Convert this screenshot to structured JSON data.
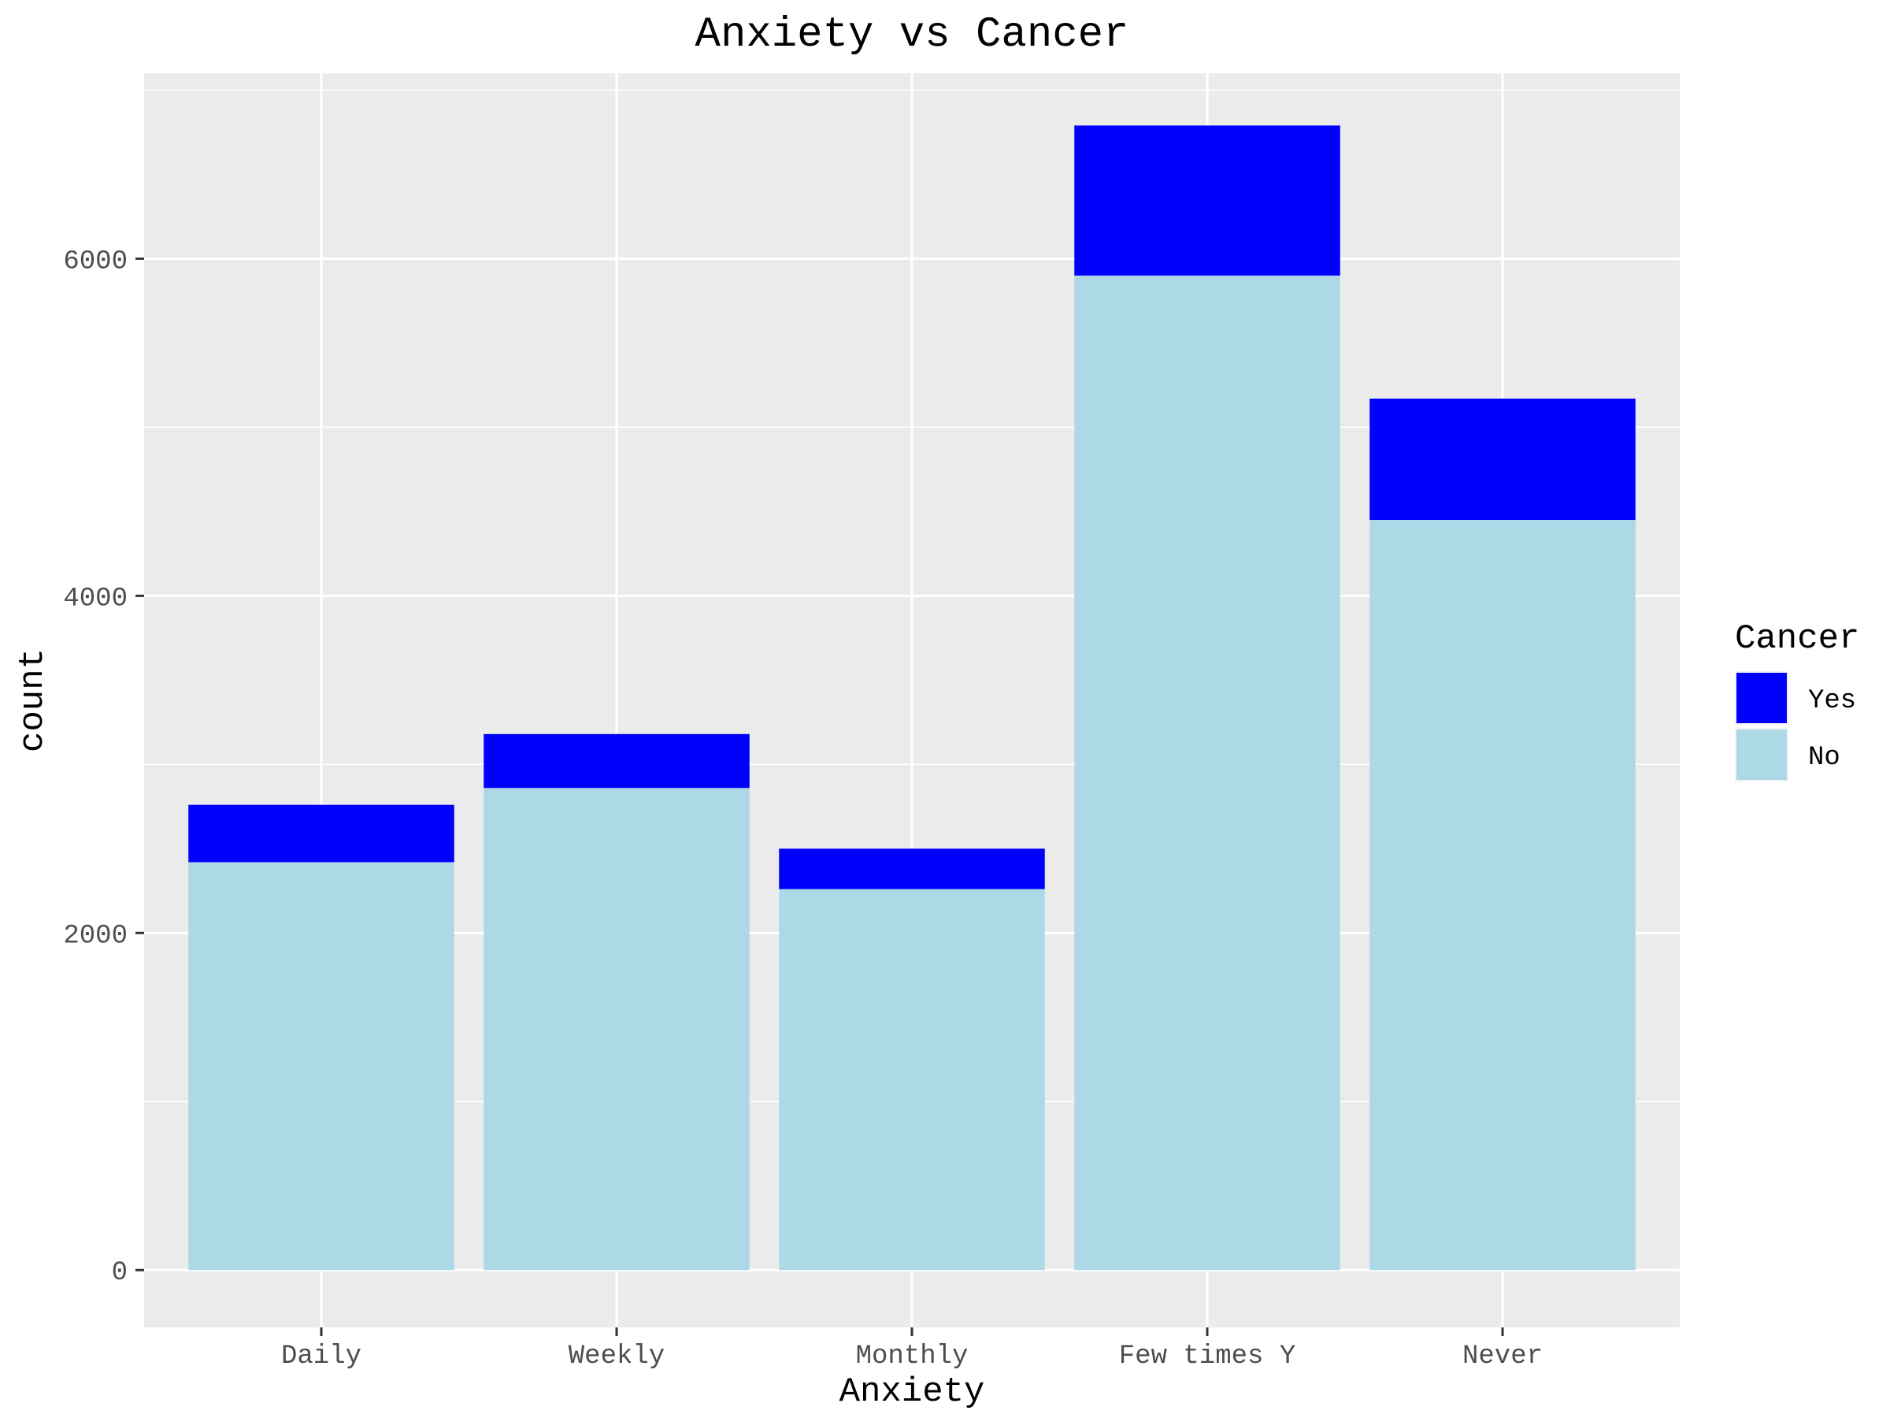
{
  "chart_data": {
    "type": "bar",
    "stacked": true,
    "title": "Anxiety vs Cancer",
    "xlabel": "Anxiety",
    "ylabel": "count",
    "categories": [
      "Daily",
      "Weekly",
      "Monthly",
      "Few times Y",
      "Never"
    ],
    "series": [
      {
        "name": "No",
        "color": "#add8e6",
        "values": [
          2420,
          2860,
          2260,
          5900,
          4450
        ]
      },
      {
        "name": "Yes",
        "color": "#0000ff",
        "values": [
          340,
          320,
          240,
          890,
          720
        ]
      }
    ],
    "ylim": [
      -340,
      7100
    ],
    "yticks": [
      0,
      2000,
      4000,
      6000
    ],
    "grid": true,
    "panel_background": "#ebebeb",
    "legend": {
      "title": "Cancer",
      "position": "right",
      "entries": [
        {
          "label": "Yes",
          "color": "#0000ff"
        },
        {
          "label": "No",
          "color": "#add8e6"
        }
      ]
    }
  }
}
